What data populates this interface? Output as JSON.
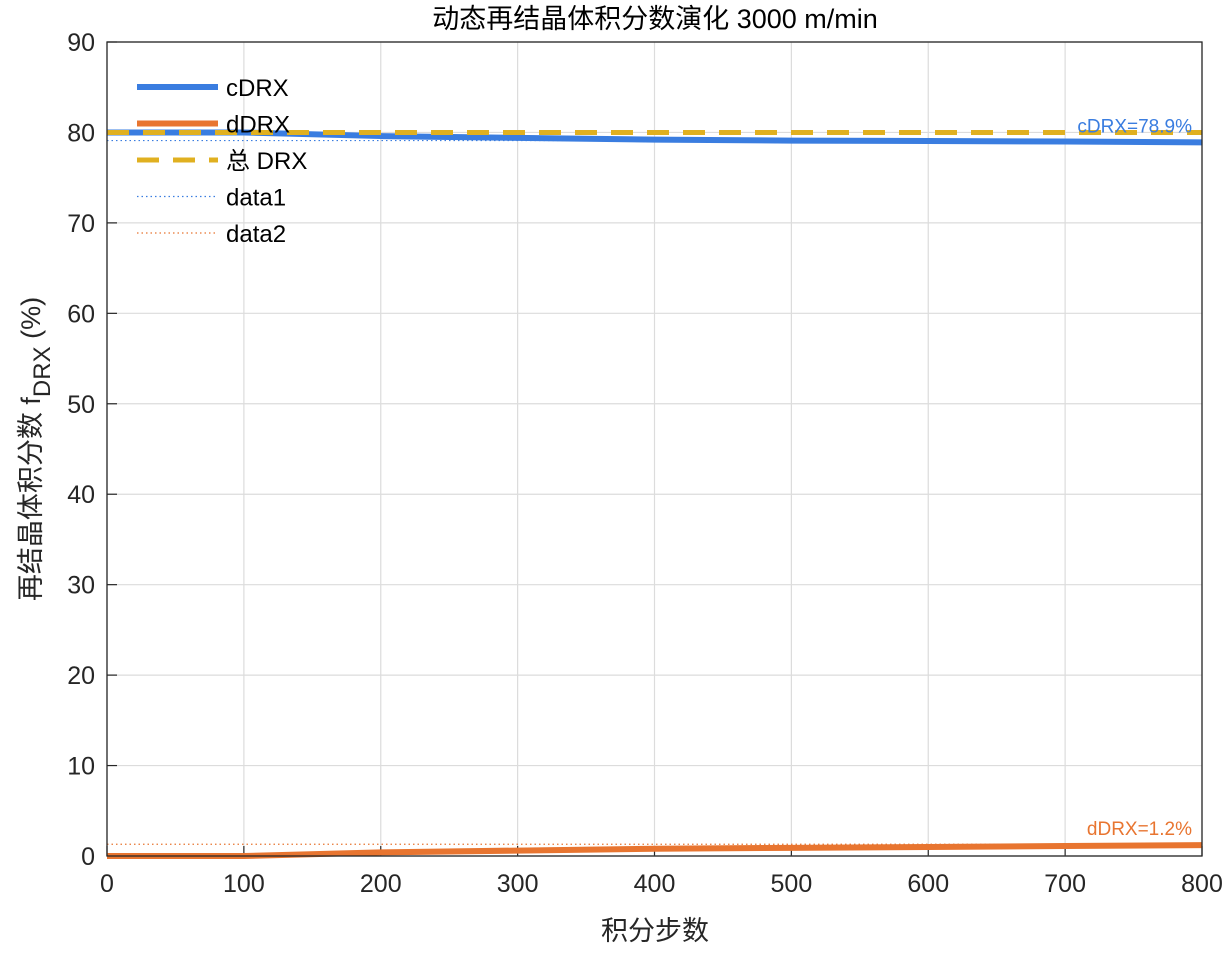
{
  "chart_data": {
    "type": "line",
    "title": "动态再结晶体积分数演化   3000 m/min",
    "xlabel": "积分步数",
    "ylabel_main": "再结晶体积分数 f",
    "ylabel_sub": "DRX",
    "ylabel_tail": " (%)",
    "xlim": [
      0,
      800
    ],
    "ylim": [
      0,
      90
    ],
    "xticks": [
      0,
      100,
      200,
      300,
      400,
      500,
      600,
      700,
      800
    ],
    "yticks": [
      0,
      10,
      20,
      30,
      40,
      50,
      60,
      70,
      80,
      90
    ],
    "grid": true,
    "legend_position": "top-left",
    "x": [
      0,
      100,
      200,
      300,
      400,
      500,
      600,
      700,
      800
    ],
    "series": [
      {
        "name": "cDRX",
        "color": "#3A7DE0",
        "style": "solid",
        "values": [
          80,
          80,
          79.6,
          79.4,
          79.2,
          79.1,
          79.05,
          79.0,
          78.9
        ]
      },
      {
        "name": "dDRX",
        "color": "#E87530",
        "style": "solid",
        "values": [
          0,
          0,
          0.4,
          0.6,
          0.8,
          0.9,
          1.0,
          1.1,
          1.2
        ]
      },
      {
        "name": "总 DRX",
        "color": "#E0B020",
        "style": "dashed",
        "values": [
          80,
          80,
          80,
          80,
          80,
          80,
          80,
          80,
          80
        ]
      },
      {
        "name": "data1",
        "color": "#3A7DE0",
        "style": "dotted",
        "values": [
          79.1,
          79.1,
          79.1,
          79.1,
          79.1,
          79.1,
          79.1,
          79.1,
          79.1
        ]
      },
      {
        "name": "data2",
        "color": "#E87530",
        "style": "dotted",
        "values": [
          1.3,
          1.3,
          1.3,
          1.3,
          1.3,
          1.3,
          1.3,
          1.3,
          1.3
        ]
      }
    ],
    "annotations": [
      {
        "text": "cDRX=78.9%",
        "x": 800,
        "y": 78.9,
        "color": "#3A7DE0"
      },
      {
        "text": "dDRX=1.2%",
        "x": 800,
        "y": 1.2,
        "color": "#E87530"
      }
    ]
  }
}
